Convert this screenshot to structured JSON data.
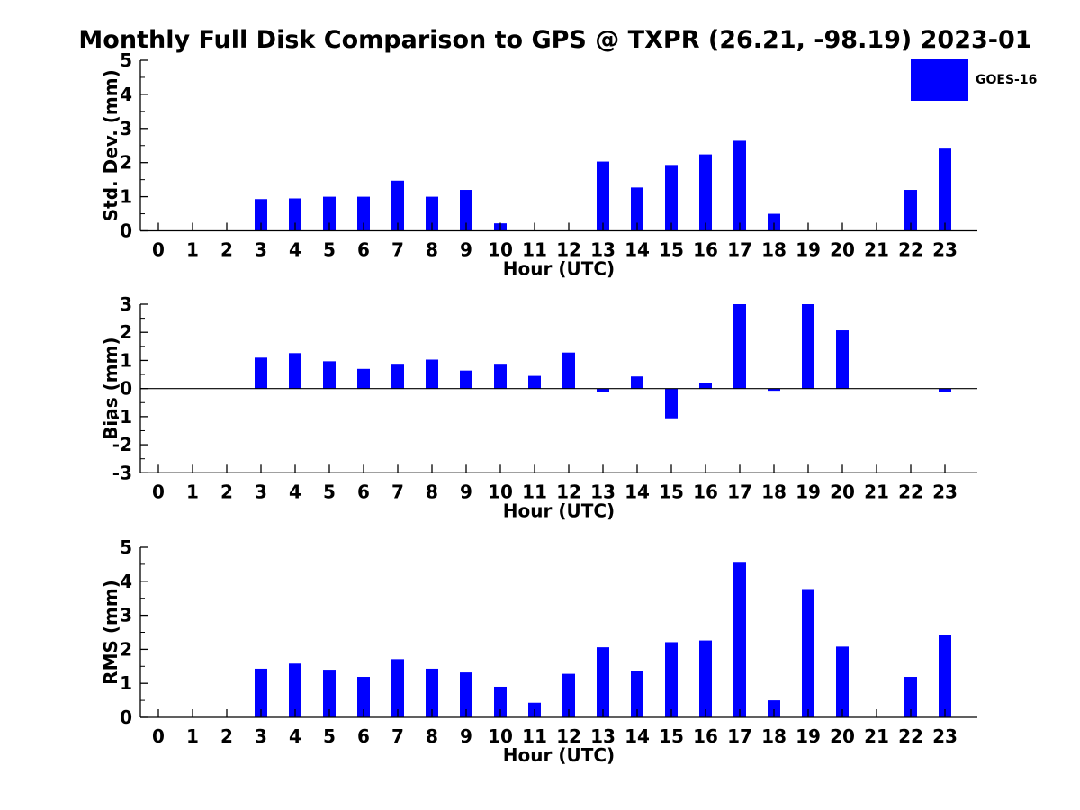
{
  "title": "Monthly Full Disk Comparison to GPS @ TXPR (26.21, -98.19) 2023-01",
  "legend": {
    "label": "GOES-16"
  },
  "colors": {
    "bar": "#0000FF",
    "axis": "#000000",
    "text": "#000000",
    "background": "#ffffff"
  },
  "chart_data": [
    {
      "type": "bar",
      "series_name": "GOES-16",
      "ylabel": "Std. Dev. (mm)",
      "xlabel": "Hour (UTC)",
      "categories": [
        0,
        1,
        2,
        3,
        4,
        5,
        6,
        7,
        8,
        9,
        10,
        11,
        12,
        13,
        14,
        15,
        16,
        17,
        18,
        19,
        20,
        21,
        22,
        23
      ],
      "values": [
        0,
        0,
        0,
        0.93,
        0.95,
        1.0,
        1.0,
        1.47,
        1.0,
        1.2,
        0.22,
        0,
        0,
        2.03,
        1.27,
        1.93,
        2.24,
        2.64,
        0.5,
        0,
        0,
        0,
        1.2,
        2.41
      ],
      "ylim": [
        0,
        5
      ],
      "ytick_step": 1,
      "yminor_step": 0.5,
      "zero_line": false,
      "grid": false,
      "legend_position": "top-right"
    },
    {
      "type": "bar",
      "series_name": "GOES-16",
      "ylabel": "Bias (mm)",
      "xlabel": "Hour (UTC)",
      "categories": [
        0,
        1,
        2,
        3,
        4,
        5,
        6,
        7,
        8,
        9,
        10,
        11,
        12,
        13,
        14,
        15,
        16,
        17,
        18,
        19,
        20,
        21,
        22,
        23
      ],
      "values": [
        0,
        0,
        0,
        1.1,
        1.26,
        0.97,
        0.7,
        0.88,
        1.03,
        0.64,
        0.88,
        0.45,
        1.28,
        -0.12,
        0.43,
        -1.06,
        0.2,
        3.0,
        -0.08,
        3.0,
        2.07,
        0,
        0,
        -0.12
      ],
      "ylim": [
        -3,
        3
      ],
      "ytick_step": 1,
      "yminor_step": 0.5,
      "zero_line": true,
      "grid": false,
      "legend_position": "none"
    },
    {
      "type": "bar",
      "series_name": "GOES-16",
      "ylabel": "RMS (mm)",
      "xlabel": "Hour (UTC)",
      "categories": [
        0,
        1,
        2,
        3,
        4,
        5,
        6,
        7,
        8,
        9,
        10,
        11,
        12,
        13,
        14,
        15,
        16,
        17,
        18,
        19,
        20,
        21,
        22,
        23
      ],
      "values": [
        0,
        0,
        0,
        1.43,
        1.58,
        1.4,
        1.19,
        1.71,
        1.43,
        1.32,
        0.9,
        0.43,
        1.28,
        2.06,
        1.36,
        2.21,
        2.26,
        4.57,
        0.5,
        3.77,
        2.08,
        0,
        1.19,
        2.41
      ],
      "ylim": [
        0,
        5
      ],
      "ytick_step": 1,
      "yminor_step": 0.5,
      "zero_line": false,
      "grid": false,
      "legend_position": "none"
    }
  ]
}
